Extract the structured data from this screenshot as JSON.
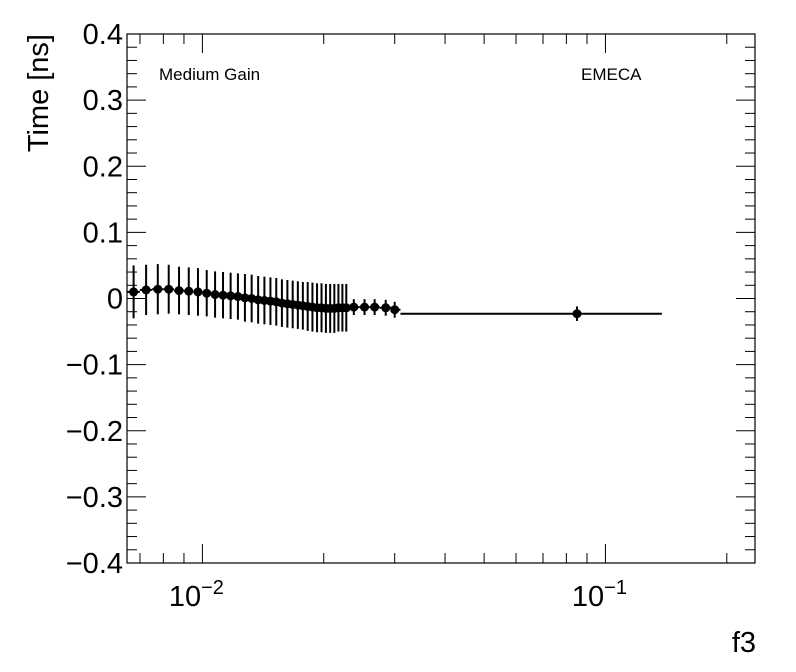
{
  "chart_data": {
    "type": "scatter",
    "xlabel": "f3",
    "ylabel": "Time [ns]",
    "x_scale": "log",
    "xlim": [
      0.0065,
      0.235
    ],
    "ylim": [
      -0.4,
      0.4
    ],
    "y_ticks": [
      {
        "value": -0.4,
        "label": "−0.4"
      },
      {
        "value": -0.3,
        "label": "−0.3"
      },
      {
        "value": -0.2,
        "label": "−0.2"
      },
      {
        "value": -0.1,
        "label": "−0.1"
      },
      {
        "value": 0,
        "label": "0"
      },
      {
        "value": 0.1,
        "label": "0.1"
      },
      {
        "value": 0.2,
        "label": "0.2"
      },
      {
        "value": 0.3,
        "label": "0.3"
      },
      {
        "value": 0.4,
        "label": "0.4"
      }
    ],
    "x_ticks": [
      {
        "value": 0.01,
        "base": "10",
        "exp": "−2"
      },
      {
        "value": 0.1,
        "base": "10",
        "exp": "−1"
      }
    ],
    "annotations": {
      "left": "Medium Gain",
      "right": "EMECA"
    },
    "series": [
      {
        "points": [
          {
            "x": 0.00675,
            "y": 0.01,
            "err": 0.04,
            "xlo": 0.0065,
            "xhi": 0.007
          },
          {
            "x": 0.00725,
            "y": 0.013,
            "err": 0.038,
            "xlo": 0.007,
            "xhi": 0.0075
          },
          {
            "x": 0.00775,
            "y": 0.014,
            "err": 0.038,
            "xlo": 0.0075,
            "xhi": 0.008
          },
          {
            "x": 0.00825,
            "y": 0.014,
            "err": 0.037,
            "xlo": 0.008,
            "xhi": 0.0085
          },
          {
            "x": 0.00875,
            "y": 0.012,
            "err": 0.036,
            "xlo": 0.0085,
            "xhi": 0.009
          },
          {
            "x": 0.00925,
            "y": 0.011,
            "err": 0.036,
            "xlo": 0.009,
            "xhi": 0.0095
          },
          {
            "x": 0.00975,
            "y": 0.01,
            "err": 0.036,
            "xlo": 0.0095,
            "xhi": 0.01
          },
          {
            "x": 0.01025,
            "y": 0.008,
            "err": 0.035,
            "xlo": 0.01,
            "xhi": 0.0105
          },
          {
            "x": 0.01075,
            "y": 0.006,
            "err": 0.035,
            "xlo": 0.0105,
            "xhi": 0.011
          },
          {
            "x": 0.01125,
            "y": 0.005,
            "err": 0.035,
            "xlo": 0.011,
            "xhi": 0.0115
          },
          {
            "x": 0.01175,
            "y": 0.004,
            "err": 0.035,
            "xlo": 0.0115,
            "xhi": 0.012
          },
          {
            "x": 0.01225,
            "y": 0.003,
            "err": 0.035,
            "xlo": 0.012,
            "xhi": 0.0125
          },
          {
            "x": 0.01275,
            "y": 0.001,
            "err": 0.036,
            "xlo": 0.0125,
            "xhi": 0.013
          },
          {
            "x": 0.01325,
            "y": 0.0,
            "err": 0.036,
            "xlo": 0.013,
            "xhi": 0.0135
          },
          {
            "x": 0.01375,
            "y": -0.002,
            "err": 0.036,
            "xlo": 0.0135,
            "xhi": 0.014
          },
          {
            "x": 0.01425,
            "y": -0.003,
            "err": 0.036,
            "xlo": 0.014,
            "xhi": 0.0145
          },
          {
            "x": 0.01475,
            "y": -0.004,
            "err": 0.036,
            "xlo": 0.0145,
            "xhi": 0.015
          },
          {
            "x": 0.01525,
            "y": -0.005,
            "err": 0.036,
            "xlo": 0.015,
            "xhi": 0.0155
          },
          {
            "x": 0.01575,
            "y": -0.007,
            "err": 0.036,
            "xlo": 0.0155,
            "xhi": 0.016
          },
          {
            "x": 0.01625,
            "y": -0.008,
            "err": 0.036,
            "xlo": 0.016,
            "xhi": 0.0165
          },
          {
            "x": 0.01675,
            "y": -0.009,
            "err": 0.036,
            "xlo": 0.0165,
            "xhi": 0.017
          },
          {
            "x": 0.01725,
            "y": -0.01,
            "err": 0.036,
            "xlo": 0.017,
            "xhi": 0.0175
          },
          {
            "x": 0.01775,
            "y": -0.011,
            "err": 0.036,
            "xlo": 0.0175,
            "xhi": 0.018
          },
          {
            "x": 0.01825,
            "y": -0.012,
            "err": 0.037,
            "xlo": 0.018,
            "xhi": 0.0185
          },
          {
            "x": 0.01875,
            "y": -0.013,
            "err": 0.037,
            "xlo": 0.0185,
            "xhi": 0.019
          },
          {
            "x": 0.01925,
            "y": -0.014,
            "err": 0.037,
            "xlo": 0.019,
            "xhi": 0.0195
          },
          {
            "x": 0.01975,
            "y": -0.014,
            "err": 0.037,
            "xlo": 0.0195,
            "xhi": 0.02
          },
          {
            "x": 0.02025,
            "y": -0.015,
            "err": 0.037,
            "xlo": 0.02,
            "xhi": 0.0205
          },
          {
            "x": 0.02075,
            "y": -0.015,
            "err": 0.037,
            "xlo": 0.0205,
            "xhi": 0.021
          },
          {
            "x": 0.02125,
            "y": -0.015,
            "err": 0.037,
            "xlo": 0.021,
            "xhi": 0.0215
          },
          {
            "x": 0.02175,
            "y": -0.014,
            "err": 0.036,
            "xlo": 0.0215,
            "xhi": 0.022
          },
          {
            "x": 0.02225,
            "y": -0.014,
            "err": 0.036,
            "xlo": 0.022,
            "xhi": 0.0225
          },
          {
            "x": 0.02275,
            "y": -0.014,
            "err": 0.036,
            "xlo": 0.0225,
            "xhi": 0.023
          },
          {
            "x": 0.02375,
            "y": -0.013,
            "err": 0.012,
            "xlo": 0.023,
            "xhi": 0.0245
          },
          {
            "x": 0.02525,
            "y": -0.013,
            "err": 0.012,
            "xlo": 0.0245,
            "xhi": 0.026
          },
          {
            "x": 0.02675,
            "y": -0.013,
            "err": 0.012,
            "xlo": 0.026,
            "xhi": 0.0275
          },
          {
            "x": 0.0285,
            "y": -0.014,
            "err": 0.012,
            "xlo": 0.0275,
            "xhi": 0.0295
          },
          {
            "x": 0.03,
            "y": -0.017,
            "err": 0.012,
            "xlo": 0.0295,
            "xhi": 0.031
          },
          {
            "x": 0.085,
            "y": -0.023,
            "err": 0.011,
            "xlo": 0.031,
            "xhi": 0.138
          }
        ]
      }
    ]
  }
}
